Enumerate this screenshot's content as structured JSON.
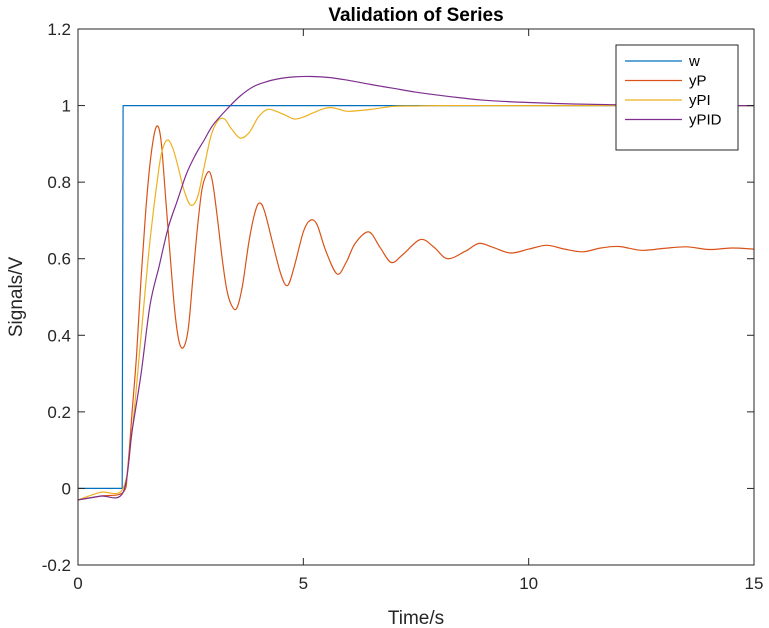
{
  "chart_data": {
    "type": "line",
    "title": "Validation of Series",
    "xlabel": "Time/s",
    "ylabel": "Signals/V",
    "xlim": [
      0,
      15
    ],
    "ylim": [
      -0.2,
      1.2
    ],
    "xticks": [
      0,
      5,
      10,
      15
    ],
    "yticks": [
      -0.2,
      0,
      0.2,
      0.4,
      0.6,
      0.8,
      1,
      1.2
    ],
    "xtick_labels": [
      "0",
      "5",
      "10",
      "15"
    ],
    "ytick_labels": [
      "-0.2",
      "0",
      "0.2",
      "0.4",
      "0.6",
      "0.8",
      "1",
      "1.2"
    ],
    "grid": false,
    "legend_position": "top-right",
    "series": [
      {
        "name": "w",
        "color": "#0072BD",
        "x": [
          0,
          0.98,
          1.0,
          15
        ],
        "y": [
          0,
          0,
          1,
          1
        ]
      },
      {
        "name": "yP",
        "color": "#D95319",
        "x": [
          0,
          0.5,
          1.0,
          1.1,
          1.2,
          1.3,
          1.4,
          1.5,
          1.6,
          1.7,
          1.78,
          1.85,
          1.95,
          2.05,
          2.15,
          2.25,
          2.35,
          2.45,
          2.55,
          2.65,
          2.75,
          2.85,
          2.93,
          3.0,
          3.1,
          3.2,
          3.3,
          3.4,
          3.52,
          3.65,
          3.8,
          3.95,
          4.05,
          4.15,
          4.3,
          4.5,
          4.65,
          4.8,
          5.0,
          5.15,
          5.3,
          5.5,
          5.75,
          5.95,
          6.15,
          6.45,
          6.7,
          6.95,
          7.2,
          7.6,
          7.9,
          8.2,
          8.6,
          8.9,
          9.2,
          9.6,
          10.0,
          10.4,
          10.8,
          11.2,
          11.6,
          12.0,
          12.5,
          13.0,
          13.5,
          14.0,
          14.5,
          15.0
        ],
        "y": [
          -0.03,
          -0.02,
          -0.01,
          0.05,
          0.2,
          0.35,
          0.55,
          0.72,
          0.85,
          0.93,
          0.945,
          0.9,
          0.75,
          0.6,
          0.46,
          0.38,
          0.37,
          0.42,
          0.55,
          0.68,
          0.78,
          0.82,
          0.825,
          0.79,
          0.7,
          0.6,
          0.52,
          0.48,
          0.47,
          0.53,
          0.65,
          0.73,
          0.745,
          0.72,
          0.65,
          0.56,
          0.53,
          0.58,
          0.67,
          0.7,
          0.69,
          0.62,
          0.56,
          0.59,
          0.64,
          0.67,
          0.63,
          0.59,
          0.61,
          0.65,
          0.63,
          0.6,
          0.62,
          0.64,
          0.63,
          0.615,
          0.625,
          0.635,
          0.625,
          0.618,
          0.628,
          0.632,
          0.622,
          0.627,
          0.631,
          0.624,
          0.628,
          0.625
        ]
      },
      {
        "name": "yPI",
        "color": "#EDB120",
        "x": [
          0,
          0.5,
          1.0,
          1.2,
          1.4,
          1.6,
          1.8,
          1.9,
          2.0,
          2.1,
          2.2,
          2.35,
          2.5,
          2.65,
          2.8,
          2.95,
          3.1,
          3.25,
          3.4,
          3.6,
          3.8,
          4.0,
          4.2,
          4.4,
          4.6,
          4.8,
          5.0,
          5.2,
          5.4,
          5.6,
          5.8,
          6.0,
          6.5,
          7.0,
          7.5,
          8.0,
          9.0,
          10.0,
          12.0,
          15.0
        ],
        "y": [
          -0.03,
          -0.01,
          0.0,
          0.15,
          0.4,
          0.65,
          0.84,
          0.895,
          0.91,
          0.89,
          0.85,
          0.78,
          0.74,
          0.76,
          0.84,
          0.92,
          0.96,
          0.965,
          0.94,
          0.915,
          0.93,
          0.97,
          0.99,
          0.985,
          0.975,
          0.965,
          0.97,
          0.98,
          0.99,
          0.995,
          0.99,
          0.985,
          0.99,
          0.998,
          0.999,
          1.0,
          1.0,
          1.0,
          1.0,
          1.0
        ]
      },
      {
        "name": "yPID",
        "color": "#7E2F8E",
        "x": [
          0,
          0.5,
          1.0,
          1.2,
          1.4,
          1.6,
          1.8,
          2.0,
          2.2,
          2.4,
          2.6,
          2.8,
          3.0,
          3.3,
          3.6,
          3.9,
          4.2,
          4.5,
          4.8,
          5.2,
          5.6,
          6.0,
          6.5,
          7.0,
          7.5,
          8.0,
          8.5,
          9.0,
          10.0,
          11.0,
          12.0,
          13.0,
          14.0,
          15.0
        ],
        "y": [
          -0.03,
          -0.02,
          -0.01,
          0.15,
          0.3,
          0.48,
          0.58,
          0.68,
          0.75,
          0.82,
          0.87,
          0.91,
          0.95,
          0.99,
          1.025,
          1.05,
          1.063,
          1.071,
          1.075,
          1.076,
          1.073,
          1.066,
          1.055,
          1.045,
          1.035,
          1.027,
          1.02,
          1.014,
          1.008,
          1.004,
          1.002,
          1.001,
          1.0,
          1.0
        ]
      }
    ]
  }
}
